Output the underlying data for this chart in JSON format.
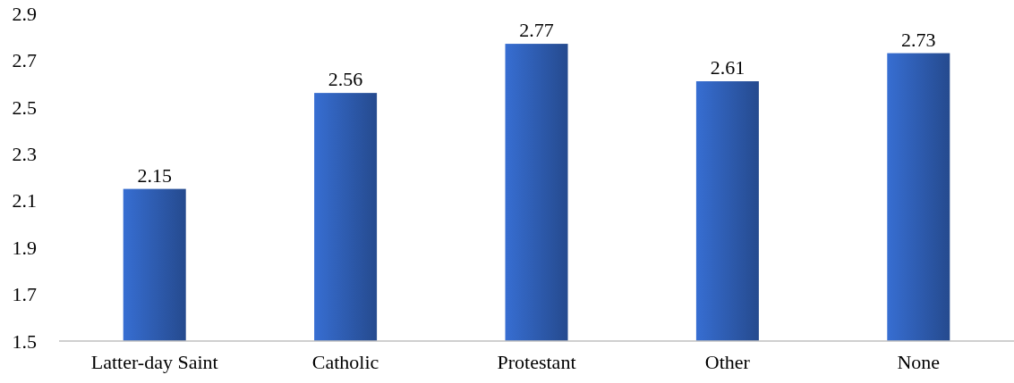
{
  "chart_data": {
    "type": "bar",
    "categories": [
      "Latter-day Saint",
      "Catholic",
      "Protestant",
      "Other",
      "None"
    ],
    "values": [
      2.15,
      2.56,
      2.77,
      2.61,
      2.73
    ],
    "color": "#3366c4",
    "ylim": [
      1.5,
      2.9
    ],
    "yticks": [
      1.5,
      1.7,
      1.9,
      2.1,
      2.3,
      2.5,
      2.7,
      2.9
    ],
    "data_labels": true
  }
}
